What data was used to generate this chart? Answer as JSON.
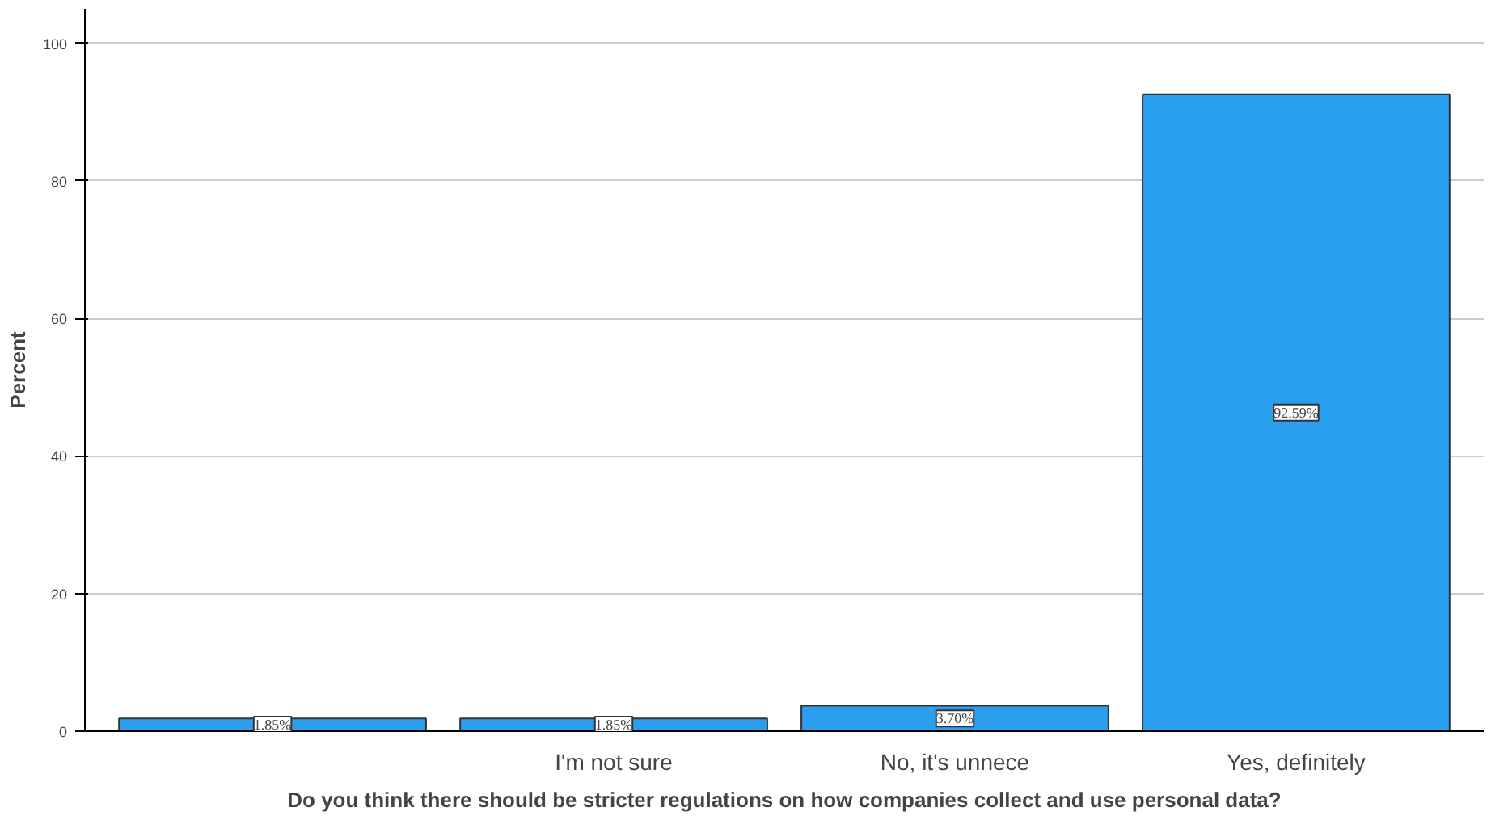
{
  "chart_data": {
    "type": "bar",
    "xlabel": "Do you think there should be stricter regulations on how companies collect and use personal data?",
    "ylabel": "Percent",
    "categories": [
      null,
      "I'm not sure",
      "No, it's unnece",
      "Yes, definitely"
    ],
    "values": [
      1.85,
      1.85,
      3.7,
      92.59
    ],
    "value_labels": [
      "1.85%",
      "1.85%",
      "3.70%",
      "92.59%"
    ],
    "color": "#2a9ff0",
    "ylim": [
      0,
      105
    ],
    "yticks": [
      0,
      20,
      40,
      60,
      80,
      100
    ],
    "grid": "y"
  }
}
